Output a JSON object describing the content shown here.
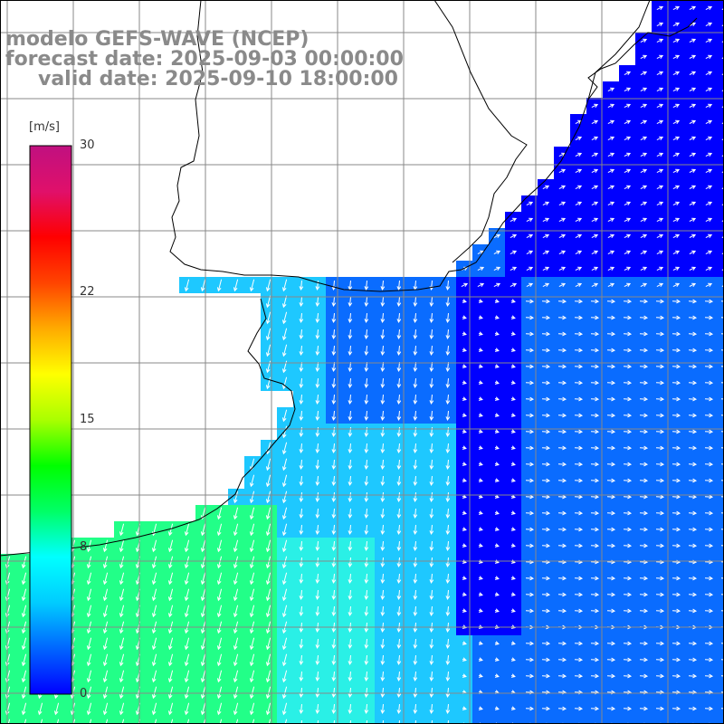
{
  "title": {
    "model": "modelo GEFS-WAVE (NCEP)",
    "forecast": "forecast date: 2025-09-03 00:00:00",
    "valid": "valid date: 2025-09-10 18:00:00"
  },
  "colorbar": {
    "unit": "[m/s]",
    "min": 0,
    "max": 30,
    "ticks": [
      "30",
      "22",
      "15",
      "8",
      "0"
    ],
    "tick_values": [
      30,
      22,
      15,
      8,
      0
    ],
    "colors": [
      "#0000ff",
      "#0066ff",
      "#00ccff",
      "#00ffff",
      "#00ff66",
      "#00ff00",
      "#aaff00",
      "#ffff00",
      "#ffaa00",
      "#ff4400",
      "#ff0000",
      "#e0106a",
      "#c01080"
    ]
  },
  "field": {
    "variable": "wind speed and direction",
    "palette": {
      "dark_blue": "#0000ff",
      "mid_blue": "#0a6cff",
      "light_blue": "#1ec8ff",
      "cyan": "#2af0e6",
      "green": "#22ff88",
      "land": "#ffffff",
      "coastline": "#000000",
      "grid": "#888888",
      "arrows": "#ffffff"
    }
  }
}
